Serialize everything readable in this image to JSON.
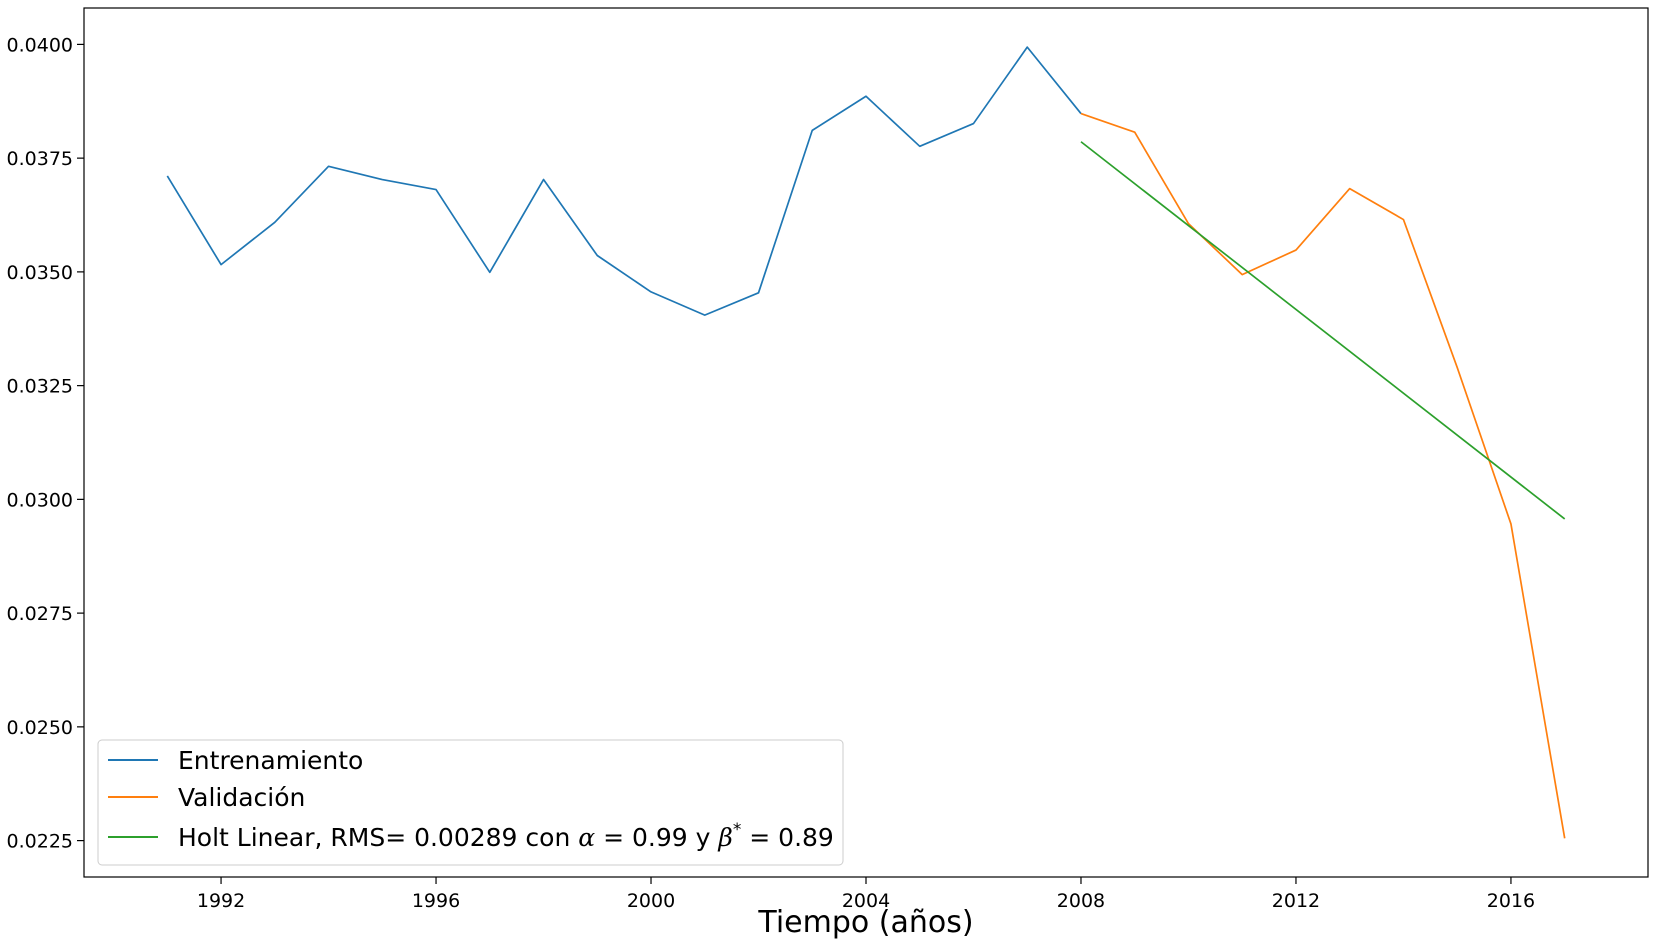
{
  "chart_data": {
    "type": "line",
    "title": "",
    "xlabel": "Tiempo (años)",
    "ylabel": "",
    "xlim": [
      1989.45,
      2018.55
    ],
    "ylim": [
      0.0217,
      0.0408
    ],
    "xticks": [
      1992,
      1996,
      2000,
      2004,
      2008,
      2012,
      2016
    ],
    "xtick_labels": [
      "1992",
      "1996",
      "2000",
      "2004",
      "2008",
      "2012",
      "2016"
    ],
    "yticks": [
      0.0225,
      0.025,
      0.0275,
      0.03,
      0.0325,
      0.035,
      0.0375,
      0.04
    ],
    "ytick_labels": [
      "0.0225",
      "0.0250",
      "0.0275",
      "0.0300",
      "0.0325",
      "0.0350",
      "0.0375",
      "0.0400"
    ],
    "grid": false,
    "legend_position": "lower-left",
    "series": [
      {
        "name": "Entrenamiento",
        "color": "#1f77b4",
        "x": [
          1991,
          1992,
          1993,
          1994,
          1995,
          1996,
          1997,
          1998,
          1999,
          2000,
          2001,
          2002,
          2003,
          2004,
          2005,
          2006,
          2007,
          2008
        ],
        "values": [
          0.03711,
          0.03516,
          0.03609,
          0.03732,
          0.03703,
          0.03681,
          0.03499,
          0.03703,
          0.03536,
          0.03456,
          0.03405,
          0.03454,
          0.03811,
          0.03886,
          0.03776,
          0.03826,
          0.03994,
          0.03848
        ]
      },
      {
        "name": "Validación",
        "color": "#ff7f0e",
        "x": [
          2008,
          2009,
          2010,
          2011,
          2012,
          2013,
          2014,
          2015,
          2016,
          2017
        ],
        "values": [
          0.03848,
          0.03807,
          0.03606,
          0.03494,
          0.03548,
          0.03683,
          0.03615,
          0.0329,
          0.02946,
          0.02255
        ]
      },
      {
        "name": "Holt Linear, RMS= 0.00289 con",
        "color": "#2ca02c",
        "x": [
          2008,
          2017
        ],
        "values": [
          0.03786,
          0.02957
        ]
      }
    ],
    "legend": {
      "items": [
        {
          "label": "Entrenamiento",
          "color": "#1f77b4"
        },
        {
          "label": "Validación",
          "color": "#ff7f0e"
        },
        {
          "label": "Holt Linear, RMS= 0.00289 con",
          "color": "#2ca02c",
          "alpha_sym": "α",
          "alpha_eq": " = 0.99",
          "conj": " y ",
          "beta_sym": "β",
          "beta_sup": "*",
          "beta_eq": " = 0.89"
        }
      ]
    }
  }
}
